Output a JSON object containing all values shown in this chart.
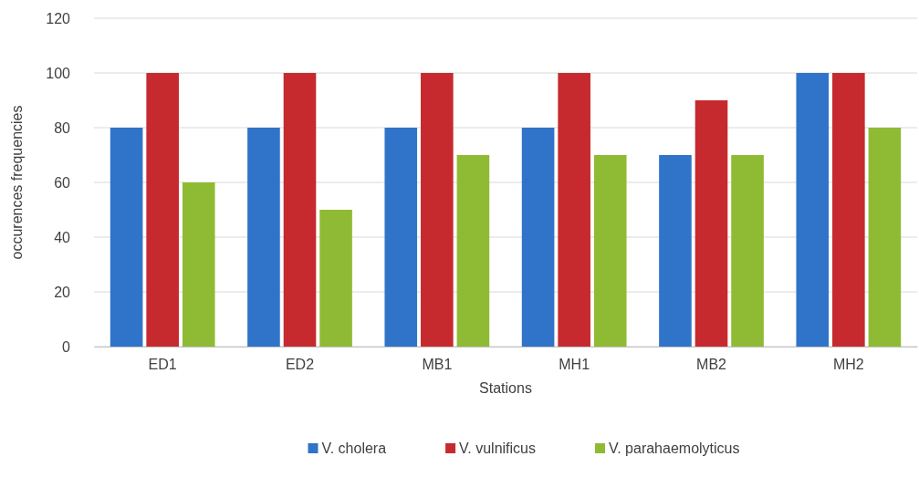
{
  "chart_data": {
    "type": "bar",
    "xlabel": "Stations",
    "ylabel": "occurences frequencies",
    "categories": [
      "ED1",
      "ED2",
      "MB1",
      "MH1",
      "MB2",
      "MH2"
    ],
    "series": [
      {
        "name": "V. cholera",
        "color": "#2f74c8",
        "values": [
          80,
          80,
          80,
          80,
          70,
          100
        ]
      },
      {
        "name": "V. vulnificus",
        "color": "#c62a2e",
        "values": [
          100,
          100,
          100,
          100,
          90,
          100
        ]
      },
      {
        "name": "V. parahaemolyticus",
        "color": "#8fbb34",
        "values": [
          60,
          50,
          70,
          70,
          70,
          80
        ]
      }
    ],
    "ylim": [
      0,
      120
    ],
    "yticks": [
      0,
      20,
      40,
      60,
      80,
      100,
      120
    ],
    "grid": "y",
    "legend": "bottom"
  }
}
